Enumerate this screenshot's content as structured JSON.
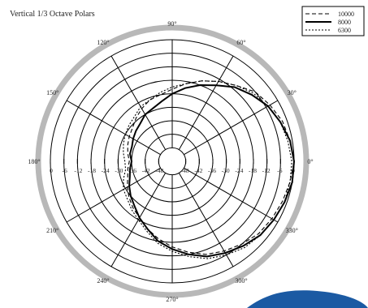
{
  "chart_data": {
    "type": "polar",
    "title": "Vertical 1/3 Octave Polars",
    "angle_labels": [
      "0°",
      "30°",
      "60°",
      "90°",
      "120°",
      "150°",
      "180°",
      "210°",
      "240°",
      "270°",
      "300°",
      "330°"
    ],
    "angle_values": [
      0,
      30,
      60,
      90,
      120,
      150,
      180,
      210,
      240,
      270,
      300,
      330
    ],
    "radial_range_db": [
      -54,
      0
    ],
    "radial_ticks_db": [
      0,
      -6,
      -12,
      -18,
      -24,
      -30,
      -36,
      -42,
      -48
    ],
    "radial_tick_labels_right": [
      "-48",
      "-42",
      "-36",
      "-30",
      "-24",
      "-18",
      "-12",
      "-6",
      "0"
    ],
    "radial_tick_labels_left": [
      "0",
      "-6",
      "-12",
      "-18",
      "-24",
      "-30",
      "-36",
      "-42",
      "-48"
    ],
    "grid": true,
    "legend_position": "top-right",
    "series": [
      {
        "name": "10000",
        "style": "dashed",
        "angles": [
          0,
          10,
          20,
          30,
          40,
          50,
          60,
          70,
          80,
          90,
          100,
          110,
          120,
          130,
          140,
          150,
          160,
          170,
          180,
          190,
          200,
          210,
          220,
          230,
          240,
          250,
          260,
          270,
          280,
          290,
          300,
          310,
          320,
          330,
          340,
          350
        ],
        "values": [
          0,
          -1,
          -2,
          -4,
          -6,
          -10,
          -13,
          -16,
          -19,
          -22,
          -24,
          -25,
          -27,
          -29,
          -31,
          -32,
          -33,
          -34,
          -35,
          -34,
          -33,
          -31,
          -29,
          -27,
          -25,
          -22,
          -19,
          -16,
          -13,
          -10,
          -8,
          -6,
          -4,
          -3,
          -2,
          -1
        ]
      },
      {
        "name": "8000",
        "style": "solid",
        "angles": [
          0,
          10,
          20,
          30,
          40,
          50,
          60,
          70,
          80,
          90,
          100,
          110,
          120,
          130,
          140,
          150,
          160,
          170,
          180,
          190,
          200,
          210,
          220,
          230,
          240,
          250,
          260,
          270,
          280,
          290,
          300,
          310,
          320,
          330,
          340,
          350
        ],
        "values": [
          0,
          -1,
          -3,
          -5,
          -8,
          -11,
          -15,
          -18,
          -21,
          -24,
          -27,
          -29,
          -30,
          -32,
          -33,
          -34,
          -35,
          -35,
          -36,
          -35,
          -34,
          -32,
          -30,
          -28,
          -25,
          -22,
          -18,
          -15,
          -12,
          -9,
          -7,
          -5,
          -3,
          -2,
          -1,
          0
        ]
      },
      {
        "name": "6300",
        "style": "dotted",
        "angles": [
          0,
          10,
          20,
          30,
          40,
          50,
          60,
          70,
          80,
          90,
          100,
          110,
          120,
          130,
          140,
          150,
          160,
          170,
          180,
          190,
          200,
          210,
          220,
          230,
          240,
          250,
          260,
          270,
          280,
          290,
          300,
          310,
          320,
          330,
          340,
          350
        ],
        "values": [
          -1,
          -2,
          -3,
          -5,
          -7,
          -10,
          -13,
          -16,
          -19,
          -21,
          -23,
          -25,
          -26,
          -28,
          -29,
          -30,
          -31,
          -32,
          -33,
          -33,
          -31,
          -29,
          -28,
          -26,
          -24,
          -21,
          -17,
          -14,
          -11,
          -8,
          -6,
          -4,
          -3,
          -2,
          -1,
          -1
        ]
      }
    ]
  },
  "colors": {
    "background": "#ffffff",
    "grid": "#000000",
    "outer_ring": "#b8b8b8",
    "series": "#000000",
    "blue_shape": "#1b5aa3"
  }
}
